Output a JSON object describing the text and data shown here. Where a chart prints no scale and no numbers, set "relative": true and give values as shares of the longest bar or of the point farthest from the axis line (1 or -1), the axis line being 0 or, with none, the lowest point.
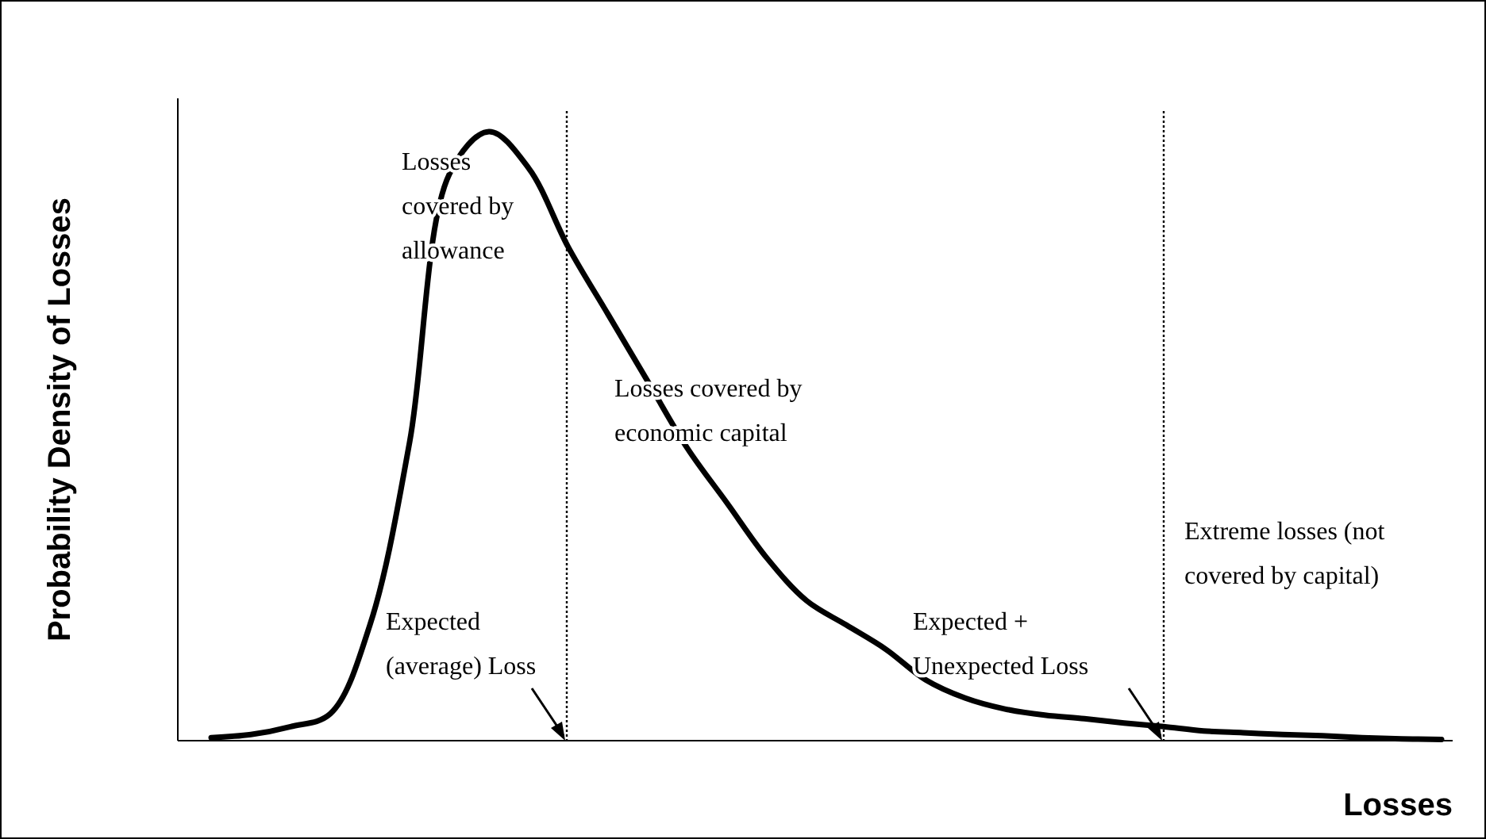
{
  "chart_data": {
    "type": "line",
    "relative": true,
    "xlabel": "Losses",
    "ylabel": "Probability Density of Losses",
    "categories": [
      null,
      null,
      null,
      null,
      null,
      null,
      null,
      null,
      null,
      null,
      null,
      null,
      null,
      null,
      null,
      null,
      null,
      null,
      null,
      null,
      null,
      null,
      null,
      null,
      null,
      null,
      null,
      null,
      null,
      null,
      null,
      null
    ],
    "series": [
      {
        "color": "#000000",
        "values": [
          0.005,
          0.01,
          0.023,
          0.044,
          0.19,
          0.49,
          0.93,
          1.0,
          0.94,
          0.81,
          0.7,
          0.59,
          0.48,
          0.39,
          0.3,
          0.23,
          0.19,
          0.15,
          0.1,
          0.07,
          0.052,
          0.042,
          0.036,
          0.029,
          0.023,
          0.016,
          0.013,
          0.01,
          0.008,
          0.005,
          0.003,
          0.002
        ]
      }
    ],
    "annotations": [
      "Losses covered by allowance",
      "Losses covered by economic capital",
      "Extreme losses (not covered by capital)",
      "Expected (average) Loss",
      "Expected + Unexpected Loss"
    ],
    "grid": false,
    "marker": "none",
    "line_style": "solid"
  }
}
